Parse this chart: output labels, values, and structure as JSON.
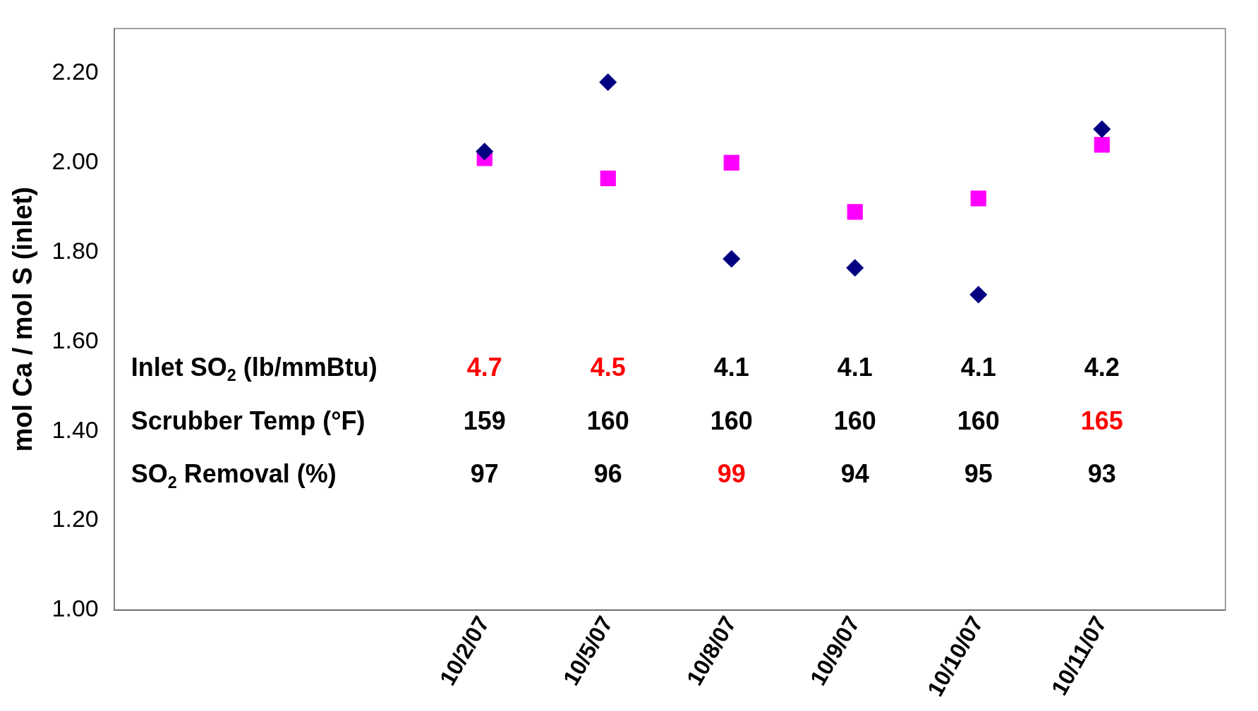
{
  "chart_data": {
    "type": "scatter",
    "ylabel": "mol Ca / mol S (inlet)",
    "categories": [
      null,
      null,
      null,
      "10/2/07",
      "10/5/07",
      "10/8/07",
      "10/9/07",
      "10/10/07",
      "10/11/07",
      null
    ],
    "series": [
      {
        "color": "#000080",
        "marker": "diamond",
        "values": [
          null,
          null,
          null,
          2.025,
          2.18,
          1.785,
          1.765,
          1.705,
          2.075,
          null
        ]
      },
      {
        "color": "#ff00ff",
        "marker": "square",
        "values": [
          null,
          null,
          null,
          2.01,
          1.965,
          2.0,
          1.89,
          1.92,
          2.04,
          null
        ]
      }
    ],
    "ylim": [
      1,
      2.3
    ],
    "yticks": [
      {
        "value": 1,
        "label": "1.00"
      },
      {
        "value": 1.2,
        "label": "1.20"
      },
      {
        "value": 1.4,
        "label": "1.40"
      },
      {
        "value": 1.6,
        "label": "1.60"
      },
      {
        "value": 1.8,
        "label": "1.80"
      },
      {
        "value": 2,
        "label": "2.00"
      },
      {
        "value": 2.2,
        "label": "2.20"
      }
    ],
    "grid": false,
    "legend": false,
    "annotations": [
      "Inlet SO$_{2}$ (lb/mmBtu)",
      "4.7",
      "4.5",
      "4.1",
      "4.1",
      "4.1",
      "4.2",
      "Scrubber Temp (°F)",
      "159",
      "160",
      "160",
      "160",
      "160",
      "165",
      "SO$_{2}$ Removal (%)",
      "97",
      "96",
      "99",
      "94",
      "95",
      "93"
    ]
  }
}
